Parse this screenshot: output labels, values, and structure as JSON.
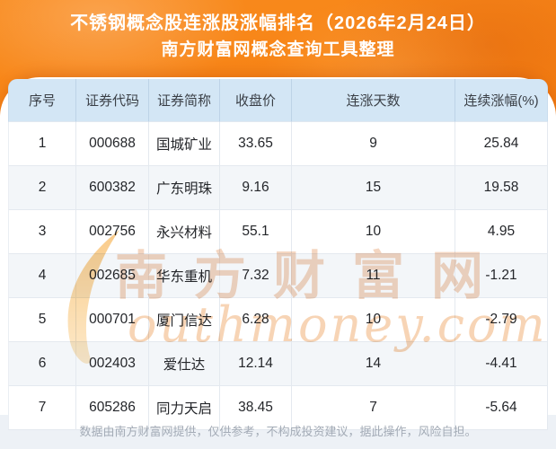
{
  "header": {
    "title_line1": "不锈钢概念股连涨股涨幅排名（2026年2月24日）",
    "title_line2": "南方财富网概念查询工具整理"
  },
  "table": {
    "columns": [
      "序号",
      "证券代码",
      "证券简称",
      "收盘价",
      "连涨天数",
      "连续涨幅(%)"
    ],
    "rows": [
      [
        "1",
        "000688",
        "国城矿业",
        "33.65",
        "9",
        "25.84"
      ],
      [
        "2",
        "600382",
        "广东明珠",
        "9.16",
        "15",
        "19.58"
      ],
      [
        "3",
        "002756",
        "永兴材料",
        "55.1",
        "10",
        "4.95"
      ],
      [
        "4",
        "002685",
        "华东重机",
        "7.32",
        "11",
        "-1.21"
      ],
      [
        "5",
        "000701",
        "厦门信达",
        "6.28",
        "10",
        "-2.79"
      ],
      [
        "6",
        "002403",
        "爱仕达",
        "12.14",
        "14",
        "-4.41"
      ],
      [
        "7",
        "605286",
        "同力天启",
        "38.45",
        "7",
        "-5.64"
      ]
    ]
  },
  "watermark": {
    "cn": "南方财富网",
    "en": "outhmoney.com"
  },
  "footer": {
    "disclaimer": "数据由南方财富网提供，仅供参考，不构成投资建议，据此操作，风险自担。"
  },
  "colors": {
    "background_orange": "#f67f10",
    "table_header_blue": "#d3e6f5",
    "alt_row": "#f3f6f9",
    "footer_band": "#edf1f6",
    "watermark_orange": "#f0b179",
    "title_text": "#ffffff"
  },
  "chart_data": {
    "type": "table",
    "title": "不锈钢概念股连涨股涨幅排名（2026年2月24日）",
    "subtitle": "南方财富网概念查询工具整理",
    "columns": [
      "序号",
      "证券代码",
      "证券简称",
      "收盘价",
      "连涨天数",
      "连续涨幅(%)"
    ],
    "rows": [
      [
        "1",
        "000688",
        "国城矿业",
        "33.65",
        "9",
        "25.84"
      ],
      [
        "2",
        "600382",
        "广东明珠",
        "9.16",
        "15",
        "19.58"
      ],
      [
        "3",
        "002756",
        "永兴材料",
        "55.1",
        "10",
        "4.95"
      ],
      [
        "4",
        "002685",
        "华东重机",
        "7.32",
        "11",
        "-1.21"
      ],
      [
        "5",
        "000701",
        "厦门信达",
        "6.28",
        "10",
        "-2.79"
      ],
      [
        "6",
        "002403",
        "爱仕达",
        "12.14",
        "14",
        "-4.41"
      ],
      [
        "7",
        "605286",
        "同力天启",
        "38.45",
        "7",
        "-5.64"
      ]
    ]
  }
}
